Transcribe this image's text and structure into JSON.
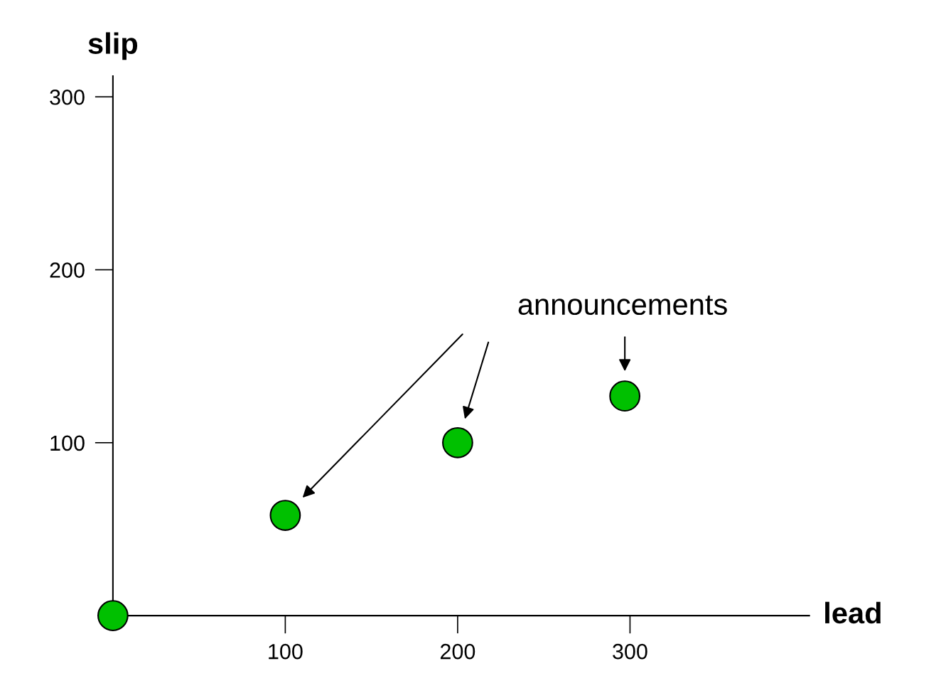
{
  "chart_data": {
    "type": "scatter",
    "xlabel": "lead",
    "ylabel": "slip",
    "x": [
      0,
      100,
      200,
      297
    ],
    "values": [
      0,
      58,
      100,
      127
    ],
    "color": "#00c000",
    "marker": "circle",
    "xlim": [
      0,
      404
    ],
    "ylim": [
      0,
      312
    ],
    "xticks": [
      100,
      200,
      300
    ],
    "yticks": [
      100,
      200,
      300
    ],
    "grid": false,
    "annotations": [
      "announcements"
    ]
  }
}
